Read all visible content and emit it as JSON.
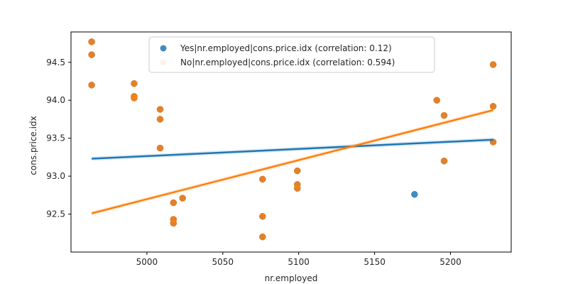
{
  "chart_data": {
    "type": "scatter",
    "title": "",
    "xlabel": "nr.employed",
    "ylabel": "cons.price.idx",
    "xlim": [
      4950,
      5240
    ],
    "ylim": [
      92.0,
      94.9
    ],
    "xticks": [
      5000,
      5050,
      5100,
      5150,
      5200
    ],
    "yticks": [
      92.5,
      93.0,
      93.5,
      94.0,
      94.5
    ],
    "legend_position": "top-center",
    "grid": false,
    "series": [
      {
        "name": "Yes|nr.employed|cons.price.idx (correlation: 0.12)",
        "color": "#1f77b4",
        "point_alpha": 0.85,
        "points": [
          [
            4963.6,
            94.77
          ],
          [
            4963.6,
            94.6
          ],
          [
            4963.6,
            94.2
          ],
          [
            4991.6,
            94.22
          ],
          [
            4991.6,
            94.05
          ],
          [
            4991.6,
            94.03
          ],
          [
            5008.7,
            93.88
          ],
          [
            5008.7,
            93.75
          ],
          [
            5008.7,
            93.37
          ],
          [
            5017.5,
            92.65
          ],
          [
            5017.5,
            92.43
          ],
          [
            5017.5,
            92.38
          ],
          [
            5023.5,
            92.71
          ],
          [
            5076.2,
            92.96
          ],
          [
            5076.2,
            92.47
          ],
          [
            5076.2,
            92.2
          ],
          [
            5099.1,
            93.07
          ],
          [
            5099.1,
            92.89
          ],
          [
            5099.1,
            92.84
          ],
          [
            5176.3,
            92.76
          ],
          [
            5191.0,
            94.0
          ],
          [
            5195.8,
            93.8
          ],
          [
            5195.8,
            93.2
          ],
          [
            5228.1,
            94.47
          ],
          [
            5228.1,
            93.92
          ],
          [
            5228.1,
            93.45
          ]
        ],
        "fit": [
          [
            4963.6,
            93.23
          ],
          [
            5228.1,
            93.48
          ]
        ]
      },
      {
        "name": "No|nr.employed|cons.price.idx (correlation: 0.594)",
        "color": "#ff7f0e",
        "point_alpha": 0.85,
        "points": [
          [
            4963.6,
            94.77
          ],
          [
            4963.6,
            94.6
          ],
          [
            4963.6,
            94.2
          ],
          [
            4991.6,
            94.22
          ],
          [
            4991.6,
            94.05
          ],
          [
            4991.6,
            94.03
          ],
          [
            5008.7,
            93.88
          ],
          [
            5008.7,
            93.75
          ],
          [
            5008.7,
            93.37
          ],
          [
            5017.5,
            92.65
          ],
          [
            5017.5,
            92.43
          ],
          [
            5017.5,
            92.38
          ],
          [
            5023.5,
            92.71
          ],
          [
            5076.2,
            92.96
          ],
          [
            5076.2,
            92.47
          ],
          [
            5076.2,
            92.2
          ],
          [
            5099.1,
            93.07
          ],
          [
            5099.1,
            92.89
          ],
          [
            5099.1,
            92.84
          ],
          [
            5191.0,
            94.0
          ],
          [
            5195.8,
            93.8
          ],
          [
            5195.8,
            93.2
          ],
          [
            5228.1,
            94.47
          ],
          [
            5228.1,
            93.92
          ],
          [
            5228.1,
            93.45
          ]
        ],
        "fit": [
          [
            4963.6,
            92.51
          ],
          [
            5228.1,
            93.87
          ]
        ]
      }
    ]
  }
}
